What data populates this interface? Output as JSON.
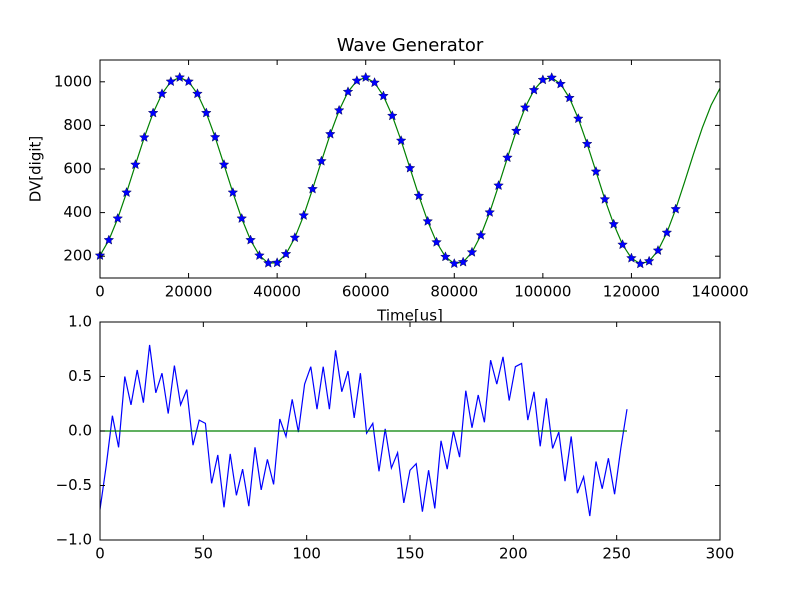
{
  "chart_data": [
    {
      "type": "line",
      "title": "Wave Generator",
      "xlabel": "Time[us]",
      "ylabel": "DV[digit]",
      "x": [
        0,
        2000,
        4000,
        6000,
        8000,
        10000,
        12000,
        14000,
        16000,
        18000,
        20000,
        22000,
        24000,
        26000,
        28000,
        30000,
        32000,
        34000,
        36000,
        38000,
        40000,
        42000,
        44000,
        46000,
        48000,
        50000,
        52000,
        54000,
        56000,
        58000,
        60000,
        62000,
        64000,
        66000,
        68000,
        70000,
        72000,
        74000,
        76000,
        78000,
        80000,
        82000,
        84000,
        86000,
        88000,
        90000,
        92000,
        94000,
        96000,
        98000,
        100000,
        102000,
        104000,
        106000,
        108000,
        110000,
        112000,
        114000,
        116000,
        118000,
        120000,
        122000,
        124000,
        126000,
        128000,
        130000,
        132000,
        134000,
        136000,
        138000,
        140000
      ],
      "series": [
        {
          "color": "#008000",
          "linestyle": "solid",
          "marker": "none",
          "values": [
            203,
            274,
            373,
            492,
            620,
            745,
            857,
            945,
            1001,
            1020,
            1001,
            945,
            857,
            746,
            620,
            492,
            373,
            274,
            203,
            168,
            170,
            210,
            285,
            387,
            508,
            636,
            760,
            869,
            954,
            1005,
            1020,
            996,
            935,
            844,
            730,
            604,
            477,
            360,
            264,
            197,
            166,
            173,
            218,
            296,
            401,
            524,
            652,
            775,
            882,
            962,
            1009,
            1019,
            990,
            926,
            831,
            715,
            588,
            461,
            347,
            253,
            191,
            165,
            177,
            226,
            308,
            416,
            540,
            668,
            789,
            893,
            970
          ]
        },
        {
          "color": "#0000ff",
          "linestyle": "none",
          "marker": "*",
          "values": [
            203,
            274,
            373,
            492,
            620,
            745,
            857,
            945,
            1001,
            1020,
            1001,
            945,
            857,
            746,
            620,
            492,
            373,
            274,
            203,
            168,
            170,
            210,
            285,
            387,
            508,
            636,
            760,
            869,
            954,
            1005,
            1020,
            996,
            935,
            844,
            730,
            604,
            477,
            360,
            264,
            197,
            166,
            173,
            218,
            296,
            401,
            524,
            652,
            775,
            882,
            962,
            1009,
            1019,
            990,
            926,
            831,
            715,
            588,
            461,
            347,
            253,
            191,
            165,
            177,
            226,
            308,
            416,
            null,
            null,
            null,
            null,
            null
          ]
        }
      ],
      "xlim": [
        0,
        140000
      ],
      "ylim": [
        100,
        1100
      ],
      "xticks": [
        0,
        20000,
        40000,
        60000,
        80000,
        100000,
        120000,
        140000
      ],
      "yticks": [
        200,
        400,
        600,
        800,
        1000
      ]
    },
    {
      "type": "line",
      "x": [
        0,
        3,
        6,
        9,
        12,
        15,
        18,
        21,
        24,
        27,
        30,
        33,
        36,
        39,
        42,
        45,
        48,
        51,
        54,
        57,
        60,
        63,
        66,
        69,
        72,
        75,
        78,
        81,
        84,
        87,
        90,
        93,
        96,
        99,
        102,
        105,
        108,
        111,
        114,
        117,
        120,
        123,
        126,
        129,
        132,
        135,
        138,
        141,
        144,
        147,
        150,
        153,
        156,
        159,
        162,
        165,
        168,
        171,
        174,
        177,
        180,
        183,
        186,
        189,
        192,
        195,
        198,
        201,
        204,
        207,
        210,
        213,
        216,
        219,
        222,
        225,
        228,
        231,
        234,
        237,
        240,
        243,
        246,
        249,
        252,
        255
      ],
      "series": [
        {
          "color": "#0000ff",
          "linestyle": "solid",
          "marker": "none",
          "values": [
            -0.72,
            -0.32,
            0.14,
            -0.15,
            0.5,
            0.24,
            0.56,
            0.26,
            0.79,
            0.35,
            0.53,
            0.16,
            0.6,
            0.24,
            0.38,
            -0.13,
            0.1,
            0.07,
            -0.48,
            -0.22,
            -0.7,
            -0.21,
            -0.59,
            -0.35,
            -0.69,
            -0.15,
            -0.54,
            -0.26,
            -0.49,
            0.11,
            -0.05,
            0.29,
            -0.01,
            0.43,
            0.59,
            0.2,
            0.59,
            0.2,
            0.74,
            0.36,
            0.55,
            0.12,
            0.53,
            -0.02,
            0.07,
            -0.37,
            0.02,
            -0.34,
            -0.2,
            -0.66,
            -0.36,
            -0.3,
            -0.74,
            -0.36,
            -0.71,
            -0.09,
            -0.35,
            0,
            -0.24,
            0.37,
            0.03,
            0.33,
            0.08,
            0.65,
            0.43,
            0.68,
            0.28,
            0.59,
            0.62,
            0.1,
            0.36,
            -0.14,
            0.3,
            -0.16,
            -0.01,
            -0.46,
            -0.05,
            -0.57,
            -0.42,
            -0.78,
            -0.28,
            -0.53,
            -0.25,
            -0.58,
            -0.16,
            0.2
          ]
        },
        {
          "color": "#008000",
          "linestyle": "solid",
          "marker": "none",
          "values": [
            0,
            0,
            0,
            0,
            0,
            0,
            0,
            0,
            0,
            0,
            0,
            0,
            0,
            0,
            0,
            0,
            0,
            0,
            0,
            0,
            0,
            0,
            0,
            0,
            0,
            0,
            0,
            0,
            0,
            0,
            0,
            0,
            0,
            0,
            0,
            0,
            0,
            0,
            0,
            0,
            0,
            0,
            0,
            0,
            0,
            0,
            0,
            0,
            0,
            0,
            0,
            0,
            0,
            0,
            0,
            0,
            0,
            0,
            0,
            0,
            0,
            0,
            0,
            0,
            0,
            0,
            0,
            0,
            0,
            0,
            0,
            0,
            0,
            0,
            0,
            0,
            0,
            0,
            0,
            0,
            0,
            0,
            0,
            0,
            0,
            0
          ]
        }
      ],
      "xlim": [
        0,
        300
      ],
      "ylim": [
        -1,
        1
      ],
      "xticks": [
        0,
        50,
        100,
        150,
        200,
        250,
        300
      ],
      "yticks": [
        {
          "value": -1,
          "label": "−1.0"
        },
        {
          "value": -0.5,
          "label": "−0.5"
        },
        {
          "value": 0,
          "label": "0.0"
        },
        {
          "value": 0.5,
          "label": "0.5"
        },
        {
          "value": 1,
          "label": "1.0"
        }
      ]
    }
  ]
}
